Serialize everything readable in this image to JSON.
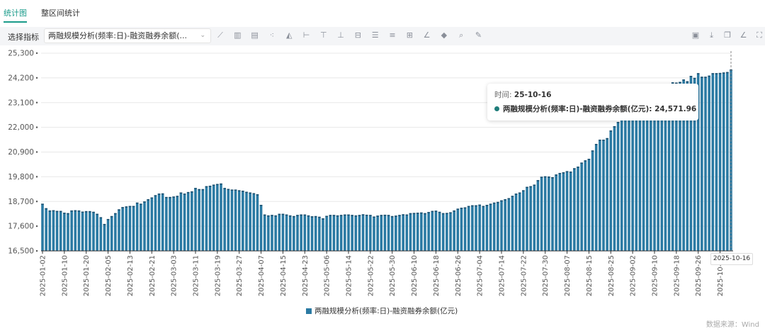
{
  "tabs": [
    {
      "label": "统计图",
      "active": true
    },
    {
      "label": "整区间统计",
      "active": false
    }
  ],
  "toolbar": {
    "select_label": "选择指标",
    "selected_indicator": "两融规模分析(频率:日)-融资融券余额(...",
    "left_icons": [
      "line-chart-icon",
      "bar-chart-icon",
      "stacked-bar-icon",
      "scatter-icon",
      "area-chart-icon",
      "bar-marker-icon",
      "max-line-icon",
      "min-line-icon",
      "avg-line-icon",
      "list-icon",
      "table-icon",
      "add-series-icon",
      "trend-line-icon",
      "fill-color-icon",
      "zoom-search-icon",
      "settings-wrench-icon"
    ],
    "right_icons": [
      "export-image-icon",
      "download-icon",
      "copy-icon",
      "draw-icon",
      "fullscreen-icon"
    ]
  },
  "tooltip": {
    "time_label": "时间: ",
    "time_value": "25-10-16",
    "series_label": "两融规模分析(频率:日)-融资融券余额(亿元): ",
    "series_value": "24,571.96"
  },
  "axis_pointer_label": "2025-10-16",
  "source": "数据来源：Wind",
  "colors": {
    "accent": "#1a9b8a",
    "bar": "#2b7aa3",
    "bar_top": "#1d4f6e",
    "tooltip_dot": "#1f7d7a"
  },
  "chart_data": {
    "type": "bar",
    "legend": "两融规模分析(频率:日)-融资融券余额(亿元)",
    "legend_position": "bottom",
    "grid": true,
    "ylim": [
      16500,
      25300
    ],
    "y_ticks": [
      "16,500",
      "17,600",
      "18,700",
      "19,800",
      "20,900",
      "22,000",
      "23,100",
      "24,200",
      "25,300"
    ],
    "y_tick_values": [
      16500,
      17600,
      18700,
      19800,
      20900,
      22000,
      23100,
      24200,
      25300
    ],
    "x_first": "2025-01-02",
    "x_last": "2025-10-16",
    "x_tick_every": 6,
    "x_ticks": [
      "2025-01-02",
      "2025-01-10",
      "2025-01-20",
      "2025-02-05",
      "2025-02-13",
      "2025-02-21",
      "2025-03-03",
      "2025-03-11",
      "2025-03-19",
      "2025-03-27",
      "2025-04-07",
      "2025-04-15",
      "2025-04-23",
      "2025-05-06",
      "2025-05-14",
      "2025-05-22",
      "2025-05-30",
      "2025-06-10",
      "2025-06-18",
      "2025-06-26",
      "2025-07-04",
      "2025-07-14",
      "2025-07-22",
      "2025-07-30",
      "2025-08-07",
      "2025-08-15",
      "2025-08-25",
      "2025-09-02",
      "2025-09-10",
      "2025-09-18",
      "2025-09-26",
      "2025-10-14"
    ],
    "values": [
      18600,
      18400,
      18300,
      18310,
      18280,
      18280,
      18200,
      18180,
      18300,
      18310,
      18300,
      18250,
      18270,
      18270,
      18240,
      18150,
      18000,
      17700,
      17920,
      18050,
      18180,
      18350,
      18450,
      18480,
      18500,
      18500,
      18650,
      18600,
      18700,
      18800,
      18880,
      18980,
      19050,
      19060,
      18900,
      18900,
      18920,
      18950,
      19100,
      19050,
      19120,
      19150,
      19300,
      19250,
      19250,
      19380,
      19400,
      19450,
      19480,
      19500,
      19300,
      19260,
      19230,
      19230,
      19200,
      19180,
      19130,
      19100,
      19070,
      19020,
      18550,
      18120,
      18080,
      18100,
      18080,
      18150,
      18150,
      18120,
      18080,
      18050,
      18100,
      18120,
      18120,
      18080,
      18040,
      18050,
      18020,
      17950,
      18060,
      18100,
      18100,
      18080,
      18100,
      18120,
      18120,
      18100,
      18080,
      18100,
      18130,
      18110,
      18100,
      18030,
      18070,
      18100,
      18110,
      18100,
      18050,
      18070,
      18100,
      18130,
      18120,
      18180,
      18190,
      18200,
      18210,
      18180,
      18230,
      18280,
      18290,
      18240,
      18180,
      18190,
      18220,
      18300,
      18380,
      18420,
      18440,
      18500,
      18530,
      18530,
      18560,
      18500,
      18550,
      18600,
      18650,
      18680,
      18750,
      18800,
      18850,
      18950,
      19050,
      19100,
      19200,
      19350,
      19380,
      19450,
      19650,
      19800,
      19820,
      19810,
      19780,
      19900,
      19970,
      20000,
      20050,
      20030,
      20180,
      20250,
      20430,
      20530,
      20600,
      20970,
      21260,
      21450,
      21450,
      21520,
      21860,
      22050,
      22240,
      22400,
      22600,
      22800,
      22900,
      23000,
      23100,
      23150,
      23300,
      23400,
      23500,
      23600,
      23700,
      23800,
      23900,
      24000,
      23990,
      24020,
      24130,
      24050,
      24290,
      24200,
      24410,
      24250,
      24250,
      24300,
      24410,
      24410,
      24420,
      24440,
      24460,
      24571.96
    ]
  }
}
